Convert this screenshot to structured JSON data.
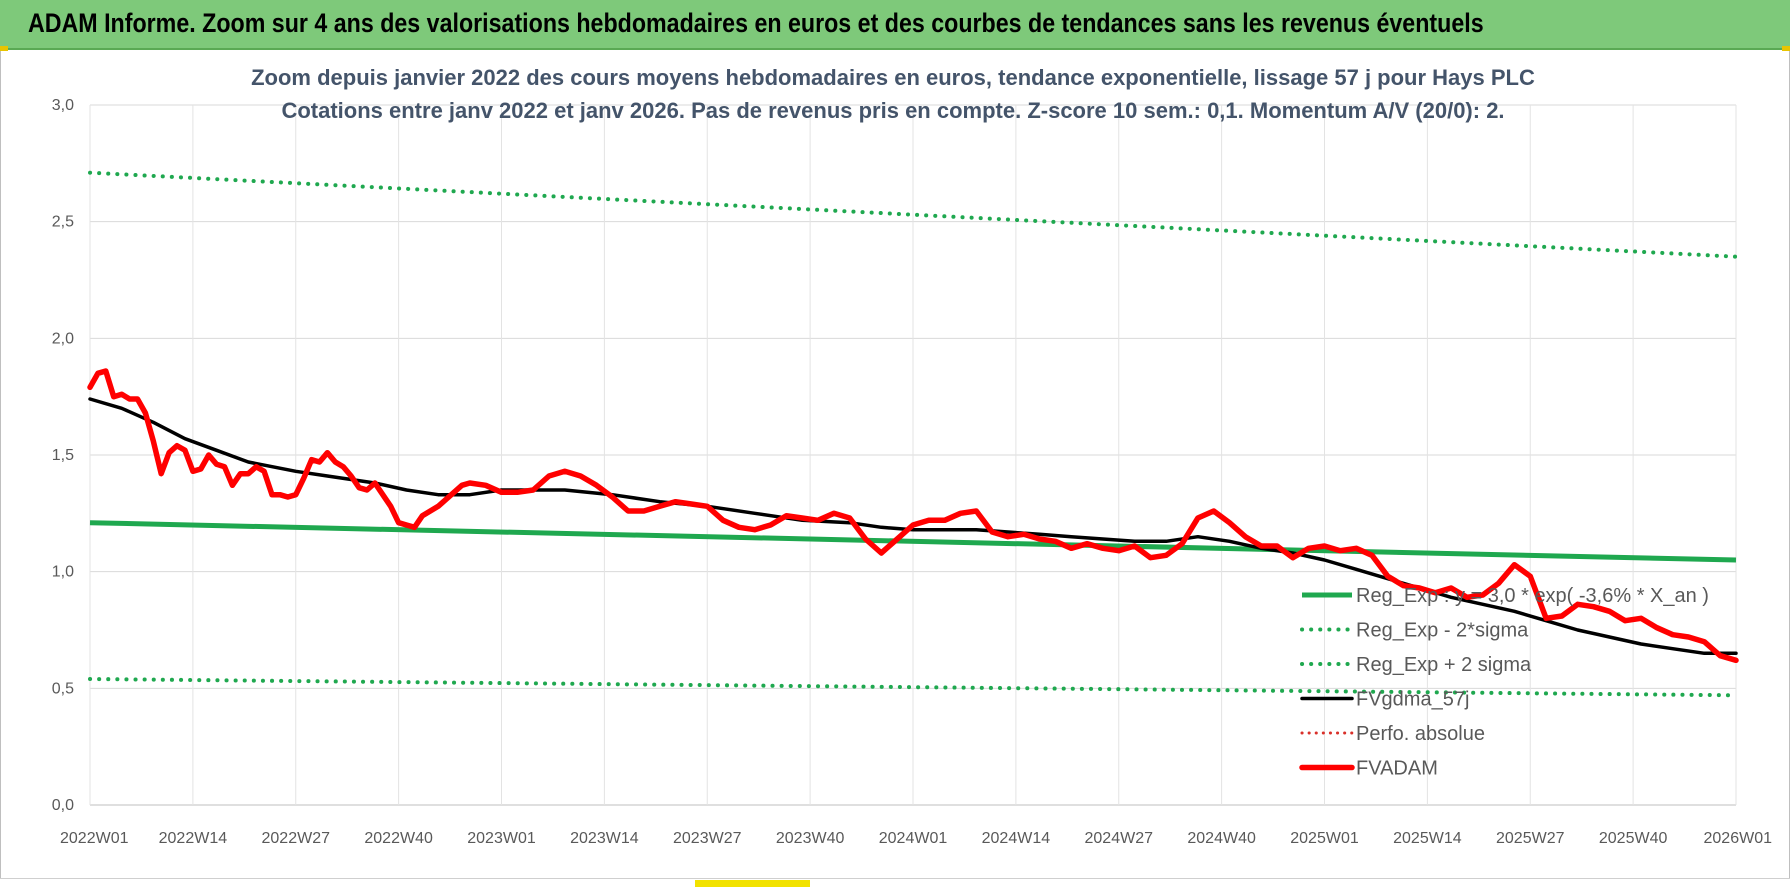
{
  "banner": {
    "title": "ADAM Informe. Zoom sur 4 ans des valorisations hebdomadaires en euros et des courbes de tendances sans les revenus éventuels"
  },
  "colors": {
    "banner_bg": "#7ec97a",
    "reg_exp": "#1fa84f",
    "fvgdma": "#000000",
    "fvadam": "#ff0000",
    "perfo": "#d9302a"
  },
  "chart_data": {
    "type": "line",
    "title_lines": [
      "Zoom depuis janvier 2022 des cours moyens hebdomadaires en euros, tendance exponentielle, lissage 57 j pour Hays PLC",
      "Cotations entre janv 2022 et janv 2026. Pas de revenus pris en compte. Z-score 10 sem.: 0,1. Momentum A/V (20/0): 2."
    ],
    "x_tick_labels": [
      "2022W01",
      "2022W14",
      "2022W27",
      "2022W40",
      "2023W01",
      "2023W14",
      "2023W27",
      "2023W40",
      "2024W01",
      "2024W14",
      "2024W27",
      "2024W40",
      "2025W01",
      "2025W14",
      "2025W27",
      "2025W40",
      "2026W01"
    ],
    "y_tick_labels": [
      "0,0",
      "0,5",
      "1,0",
      "1,5",
      "2,0",
      "2,5",
      "3,0"
    ],
    "ylim": [
      0,
      3
    ],
    "x_range_weeks": [
      0,
      208
    ],
    "grid": true,
    "legend_position": "bottom-right",
    "series": [
      {
        "name": "Reg_Exp : y = 3,0 * exp( -3,6% *  X_an )",
        "style": "solid-green",
        "x": [
          0,
          208
        ],
        "y": [
          1.21,
          1.05
        ]
      },
      {
        "name": "Reg_Exp - 2*sigma",
        "style": "dotted-green",
        "x": [
          0,
          208
        ],
        "y": [
          0.54,
          0.47
        ]
      },
      {
        "name": "Reg_Exp + 2 sigma",
        "style": "dotted-green",
        "x": [
          0,
          208
        ],
        "y": [
          2.71,
          2.35
        ]
      },
      {
        "name": "FVgdma_57j",
        "style": "solid-black",
        "x": [
          0,
          4,
          8,
          12,
          16,
          20,
          26,
          30,
          36,
          40,
          44,
          48,
          52,
          56,
          60,
          66,
          72,
          78,
          84,
          90,
          96,
          100,
          104,
          108,
          112,
          116,
          120,
          124,
          128,
          132,
          136,
          140,
          144,
          148,
          152,
          156,
          160,
          164,
          168,
          172,
          176,
          180,
          184,
          188,
          192,
          196,
          200,
          204,
          208
        ],
        "y": [
          1.74,
          1.7,
          1.64,
          1.57,
          1.52,
          1.47,
          1.43,
          1.41,
          1.38,
          1.35,
          1.33,
          1.33,
          1.35,
          1.35,
          1.35,
          1.33,
          1.3,
          1.28,
          1.25,
          1.22,
          1.21,
          1.19,
          1.18,
          1.18,
          1.18,
          1.17,
          1.16,
          1.15,
          1.14,
          1.13,
          1.13,
          1.15,
          1.13,
          1.1,
          1.08,
          1.05,
          1.01,
          0.97,
          0.93,
          0.89,
          0.86,
          0.83,
          0.79,
          0.75,
          0.72,
          0.69,
          0.67,
          0.65,
          0.65
        ]
      },
      {
        "name": "Perfo. absolue",
        "style": "dotted-red",
        "x": [],
        "y": []
      },
      {
        "name": "FVADAM",
        "style": "thick-red",
        "x": [
          0,
          1,
          2,
          3,
          4,
          5,
          6,
          7,
          8,
          9,
          10,
          11,
          12,
          13,
          14,
          15,
          16,
          17,
          18,
          19,
          20,
          21,
          22,
          23,
          24,
          25,
          26,
          27,
          28,
          29,
          30,
          31,
          32,
          33,
          34,
          35,
          36,
          37,
          38,
          39,
          40,
          41,
          42,
          43,
          44,
          45,
          46,
          47,
          48,
          50,
          52,
          54,
          56,
          58,
          60,
          62,
          64,
          66,
          68,
          70,
          72,
          74,
          76,
          78,
          80,
          82,
          84,
          86,
          88,
          90,
          92,
          94,
          96,
          98,
          100,
          102,
          104,
          106,
          108,
          110,
          112,
          114,
          116,
          118,
          120,
          122,
          124,
          126,
          128,
          130,
          132,
          134,
          136,
          138,
          140,
          142,
          144,
          146,
          148,
          150,
          152,
          154,
          156,
          158,
          160,
          162,
          164,
          166,
          168,
          170,
          172,
          174,
          176,
          178,
          180,
          182,
          184,
          186,
          188,
          190,
          192,
          194,
          196,
          198,
          200,
          202,
          204,
          206,
          208
        ],
        "y": [
          1.79,
          1.85,
          1.86,
          1.75,
          1.76,
          1.74,
          1.74,
          1.68,
          1.56,
          1.42,
          1.51,
          1.54,
          1.52,
          1.43,
          1.44,
          1.5,
          1.46,
          1.45,
          1.37,
          1.42,
          1.42,
          1.45,
          1.43,
          1.33,
          1.33,
          1.32,
          1.33,
          1.4,
          1.48,
          1.47,
          1.51,
          1.47,
          1.45,
          1.41,
          1.36,
          1.35,
          1.38,
          1.33,
          1.28,
          1.21,
          1.2,
          1.19,
          1.24,
          1.26,
          1.28,
          1.31,
          1.34,
          1.37,
          1.38,
          1.37,
          1.34,
          1.34,
          1.35,
          1.41,
          1.43,
          1.41,
          1.37,
          1.32,
          1.26,
          1.26,
          1.28,
          1.3,
          1.29,
          1.28,
          1.22,
          1.19,
          1.18,
          1.2,
          1.24,
          1.23,
          1.22,
          1.25,
          1.23,
          1.14,
          1.08,
          1.14,
          1.2,
          1.22,
          1.22,
          1.25,
          1.26,
          1.17,
          1.15,
          1.16,
          1.14,
          1.13,
          1.1,
          1.12,
          1.1,
          1.09,
          1.11,
          1.06,
          1.07,
          1.12,
          1.23,
          1.26,
          1.21,
          1.15,
          1.11,
          1.11,
          1.06,
          1.1,
          1.11,
          1.09,
          1.1,
          1.07,
          0.98,
          0.94,
          0.93,
          0.91,
          0.93,
          0.89,
          0.9,
          0.95,
          1.03,
          0.98,
          0.8,
          0.81,
          0.86,
          0.85,
          0.83,
          0.79,
          0.8,
          0.76,
          0.73,
          0.72,
          0.7,
          0.64,
          0.62
        ]
      }
    ]
  }
}
